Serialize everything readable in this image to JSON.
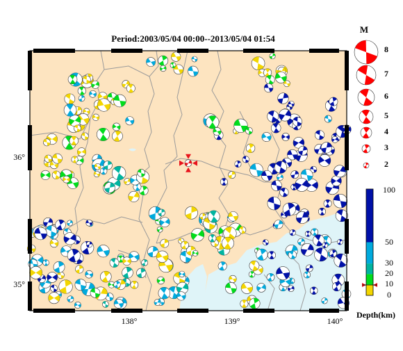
{
  "title": "Period:2003/05/04 00:00--2013/05/04 01:54",
  "map": {
    "lon_min": 137.0,
    "lon_max": 140.1,
    "lat_min": 34.78,
    "lat_max": 36.63,
    "land_color": "#fde4c0",
    "sea_color": "#dff4f8",
    "boundary_color": "#9a9a9a",
    "x_ticks": [
      {
        "value": 138,
        "label": "138°"
      },
      {
        "value": 139,
        "label": "139°"
      },
      {
        "value": 140,
        "label": "140°"
      }
    ],
    "y_ticks": [
      {
        "value": 35,
        "label": "35°"
      },
      {
        "value": 36,
        "label": "36°"
      }
    ],
    "mainshock": {
      "lon": 138.55,
      "lat": 35.83,
      "color": "#e8121b"
    }
  },
  "magnitude_legend": {
    "title": "M",
    "color": "#ff0000",
    "items": [
      "8",
      "7",
      "6",
      "5",
      "4",
      "3",
      "2"
    ]
  },
  "depth_scale": {
    "title": "Depth(km)",
    "ticks": [
      "100",
      "50",
      "30",
      "20",
      "10",
      "0"
    ],
    "bands": [
      {
        "from": 0,
        "to": 10,
        "color": "#f3d600"
      },
      {
        "from": 10,
        "to": 20,
        "color": "#00dc1c"
      },
      {
        "from": 20,
        "to": 30,
        "color": "#00b4a0"
      },
      {
        "from": 30,
        "to": 50,
        "color": "#00aadd"
      },
      {
        "from": 50,
        "to": 100,
        "color": "#0010a8"
      }
    ]
  }
}
